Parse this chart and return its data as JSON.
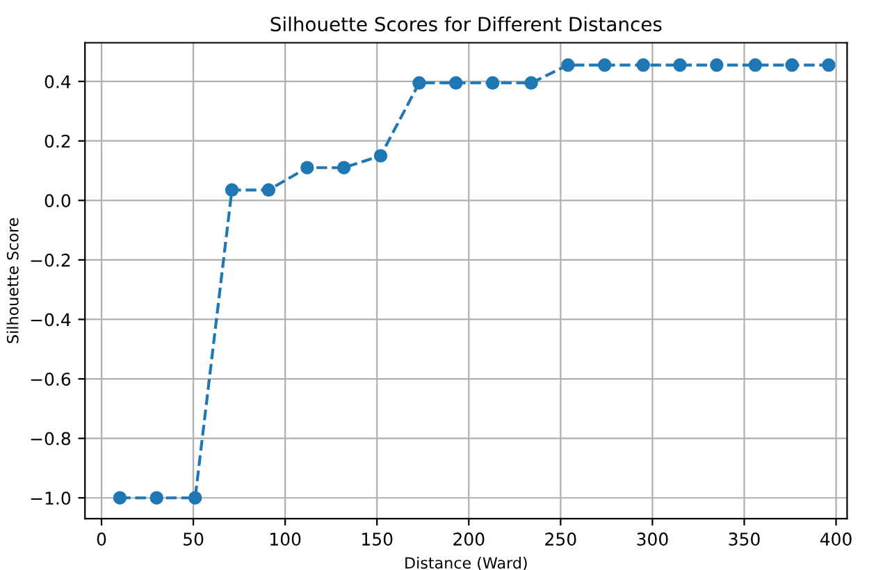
{
  "chart_data": {
    "type": "line",
    "title": "Silhouette Scores for Different Distances",
    "xlabel": "Distance (Ward)",
    "ylabel": "Silhouette Score",
    "series": [
      {
        "color": "#1f77b4",
        "x": [
          10,
          30,
          51,
          71,
          91,
          112,
          132,
          152,
          173,
          193,
          213,
          234,
          254,
          274,
          295,
          315,
          335,
          356,
          376,
          396
        ],
        "values": [
          -1.0,
          -1.0,
          -1.0,
          0.035,
          0.035,
          0.11,
          0.11,
          0.15,
          0.395,
          0.395,
          0.395,
          0.395,
          0.455,
          0.455,
          0.455,
          0.455,
          0.455,
          0.455,
          0.455,
          0.455
        ]
      }
    ],
    "marker": "circle",
    "line_style": "dashed",
    "grid": true,
    "xlim": [
      -9,
      406
    ],
    "ylim": [
      -1.07,
      0.53
    ],
    "xticks": [
      0,
      50,
      100,
      150,
      200,
      250,
      300,
      350,
      400
    ],
    "yticks": [
      {
        "value": -1.0,
        "label": "−1.0"
      },
      {
        "value": -0.8,
        "label": "−0.8"
      },
      {
        "value": -0.6,
        "label": "−0.6"
      },
      {
        "value": -0.4,
        "label": "−0.4"
      },
      {
        "value": -0.2,
        "label": "−0.2"
      },
      {
        "value": 0.0,
        "label": "0.0"
      },
      {
        "value": 0.2,
        "label": "0.2"
      },
      {
        "value": 0.4,
        "label": "0.4"
      }
    ]
  }
}
